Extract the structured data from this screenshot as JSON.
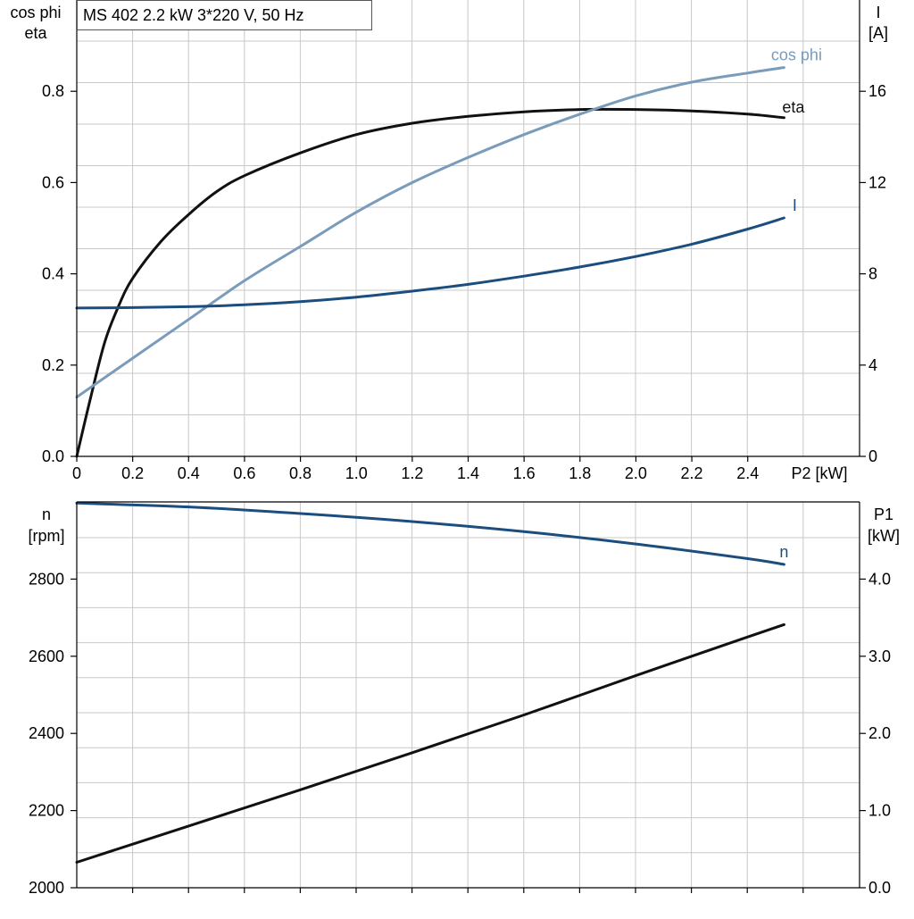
{
  "chart_data": [
    {
      "type": "line",
      "title": "MS 402   2.2 kW   3*220 V, 50 Hz",
      "xlabel": "P2 [kW]",
      "xlim": [
        0,
        2.8
      ],
      "x_ticks": [
        "0",
        "0.2",
        "0.4",
        "0.6",
        "0.8",
        "1.0",
        "1.2",
        "1.4",
        "1.6",
        "1.8",
        "2.0",
        "2.2",
        "2.4"
      ],
      "ylabel_left": [
        "cos phi",
        "eta"
      ],
      "ylim_left": [
        0,
        1.0
      ],
      "y_ticks_left": [
        "0.0",
        "0.2",
        "0.4",
        "0.6",
        "0.8"
      ],
      "ylabel_right": [
        "I",
        "[A]"
      ],
      "ylim_right": [
        0,
        20
      ],
      "y_ticks_right": [
        "0",
        "4",
        "8",
        "12",
        "16"
      ],
      "grid": true,
      "series": [
        {
          "name": "eta",
          "axis": "left",
          "color": "#111111",
          "x": [
            0,
            0.05,
            0.1,
            0.15,
            0.2,
            0.3,
            0.4,
            0.5,
            0.6,
            0.8,
            1.0,
            1.2,
            1.4,
            1.6,
            1.8,
            2.0,
            2.2,
            2.4,
            2.53
          ],
          "y": [
            0,
            0.13,
            0.25,
            0.33,
            0.39,
            0.47,
            0.53,
            0.58,
            0.615,
            0.665,
            0.705,
            0.73,
            0.745,
            0.755,
            0.76,
            0.76,
            0.757,
            0.75,
            0.742
          ]
        },
        {
          "name": "cos phi",
          "axis": "left",
          "color": "#7a9cba",
          "x": [
            0,
            0.2,
            0.4,
            0.6,
            0.8,
            1.0,
            1.2,
            1.4,
            1.6,
            1.8,
            2.0,
            2.2,
            2.4,
            2.53
          ],
          "y": [
            0.13,
            0.215,
            0.3,
            0.385,
            0.46,
            0.535,
            0.6,
            0.655,
            0.705,
            0.75,
            0.79,
            0.82,
            0.84,
            0.852
          ]
        },
        {
          "name": "I",
          "axis": "right",
          "color": "#1b4e7e",
          "x": [
            0,
            0.2,
            0.4,
            0.6,
            0.8,
            1.0,
            1.2,
            1.4,
            1.6,
            1.8,
            2.0,
            2.2,
            2.4,
            2.53
          ],
          "y": [
            6.5,
            6.52,
            6.56,
            6.64,
            6.78,
            6.98,
            7.24,
            7.54,
            7.9,
            8.3,
            8.76,
            9.3,
            9.96,
            10.45
          ]
        }
      ]
    },
    {
      "type": "line",
      "xlim": [
        0,
        2.8
      ],
      "ylabel_left": [
        "n",
        "[rpm]"
      ],
      "ylim_left": [
        2000,
        3000
      ],
      "y_ticks_left": [
        "2000",
        "2200",
        "2400",
        "2600",
        "2800"
      ],
      "ylabel_right": [
        "P1",
        "[kW]"
      ],
      "ylim_right": [
        0,
        5
      ],
      "y_ticks_right": [
        "0.0",
        "1.0",
        "2.0",
        "3.0",
        "4.0"
      ],
      "grid": true,
      "series": [
        {
          "name": "n",
          "axis": "left",
          "color": "#1b4e7e",
          "x": [
            0,
            0.4,
            0.8,
            1.2,
            1.6,
            2.0,
            2.4,
            2.53
          ],
          "y": [
            2997,
            2987,
            2970,
            2949,
            2923,
            2891,
            2853,
            2838
          ]
        },
        {
          "name": "P1",
          "axis": "right",
          "color": "#111111",
          "x": [
            0,
            0.4,
            0.8,
            1.2,
            1.6,
            2.0,
            2.4,
            2.53
          ],
          "y": [
            0.33,
            0.8,
            1.27,
            1.75,
            2.24,
            2.75,
            3.25,
            3.41
          ]
        }
      ]
    }
  ]
}
